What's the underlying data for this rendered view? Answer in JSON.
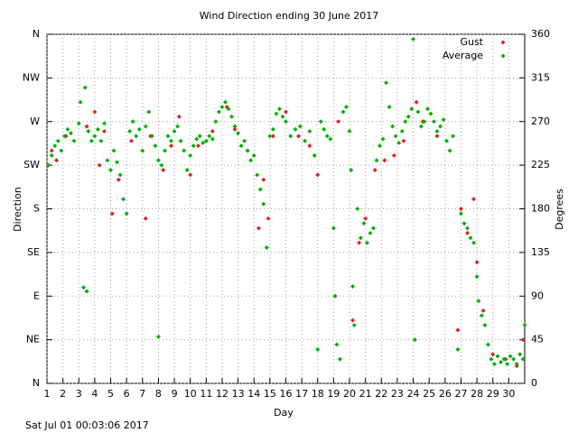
{
  "chart_data": {
    "type": "scatter",
    "title": "Wind Direction ending 30 June 2017",
    "x_label": "Day",
    "y_label": "Direction",
    "y2_label": "Degrees",
    "footer": "Sat Jul 01 00:03:06 2017",
    "xlim": [
      1,
      31
    ],
    "xticks": [
      1,
      2,
      3,
      4,
      5,
      6,
      7,
      8,
      9,
      10,
      11,
      12,
      13,
      14,
      15,
      16,
      17,
      18,
      19,
      20,
      21,
      22,
      23,
      24,
      25,
      26,
      27,
      28,
      29,
      30
    ],
    "ylim": [
      0,
      360
    ],
    "yticks": [
      {
        "value": 0,
        "label": "N"
      },
      {
        "value": 45,
        "label": "NE"
      },
      {
        "value": 90,
        "label": "E"
      },
      {
        "value": 135,
        "label": "SE"
      },
      {
        "value": 180,
        "label": "S"
      },
      {
        "value": 225,
        "label": "SW"
      },
      {
        "value": 270,
        "label": "W"
      },
      {
        "value": 315,
        "label": "NW"
      },
      {
        "value": 360,
        "label": "N"
      }
    ],
    "y2lim": [
      0,
      360
    ],
    "y2ticks": [
      0,
      45,
      90,
      135,
      180,
      225,
      270,
      315,
      360
    ],
    "grid": true,
    "legend": "top-right",
    "series": [
      {
        "name": "Gust",
        "color": "#e02020",
        "x": [
          1.3,
          1.6,
          2.2,
          3.5,
          4.0,
          4.3,
          4.6,
          5.1,
          5.5,
          6.3,
          7.2,
          7.5,
          8.3,
          8.8,
          9.3,
          10.0,
          10.5,
          11.4,
          12.3,
          12.8,
          13.6,
          14.3,
          14.6,
          14.9,
          15.2,
          16.0,
          16.8,
          17.5,
          18.0,
          19.3,
          20.2,
          20.6,
          21.0,
          21.6,
          22.2,
          22.8,
          23.4,
          24.2,
          24.6,
          25.5,
          26.8,
          27.0,
          27.4,
          27.8,
          28.0,
          28.4,
          29.0,
          29.8,
          30.5,
          30.9
        ],
        "values": [
          240,
          230,
          255,
          265,
          280,
          225,
          260,
          175,
          210,
          250,
          170,
          255,
          220,
          245,
          275,
          215,
          245,
          260,
          285,
          262,
          240,
          160,
          210,
          170,
          255,
          280,
          255,
          245,
          215,
          270,
          65,
          145,
          170,
          220,
          230,
          235,
          250,
          290,
          270,
          255,
          55,
          180,
          155,
          190,
          125,
          75,
          30,
          25,
          18,
          45
        ]
      },
      {
        "name": "Average",
        "color": "#00b000",
        "x": [
          1.1,
          1.3,
          1.5,
          1.7,
          1.9,
          2.1,
          2.3,
          2.5,
          2.7,
          3.0,
          3.1,
          3.3,
          3.5,
          3.4,
          3.6,
          3.8,
          4.0,
          4.2,
          4.4,
          4.6,
          4.8,
          5.0,
          5.2,
          5.4,
          5.6,
          5.8,
          6.0,
          6.2,
          6.4,
          6.6,
          6.8,
          7.0,
          7.2,
          7.4,
          7.6,
          7.8,
          8.0,
          8.0,
          8.2,
          8.4,
          8.6,
          8.8,
          9.0,
          9.2,
          9.4,
          9.6,
          9.8,
          10.0,
          10.2,
          10.4,
          10.6,
          10.8,
          11.0,
          11.2,
          11.4,
          11.6,
          11.8,
          12.0,
          12.2,
          12.4,
          12.6,
          12.8,
          13.0,
          13.2,
          13.4,
          13.6,
          13.8,
          14.0,
          14.2,
          14.4,
          14.6,
          14.8,
          15.0,
          15.2,
          15.4,
          15.6,
          15.8,
          16.0,
          16.3,
          16.6,
          16.9,
          17.2,
          17.5,
          17.8,
          18.0,
          18.2,
          18.4,
          18.6,
          18.8,
          19.0,
          19.1,
          19.2,
          19.4,
          19.6,
          19.8,
          20.0,
          20.1,
          20.2,
          20.3,
          20.5,
          20.7,
          20.9,
          21.1,
          21.3,
          21.5,
          21.7,
          21.9,
          22.1,
          22.3,
          22.5,
          22.7,
          22.9,
          23.1,
          23.3,
          23.5,
          23.7,
          23.9,
          24.0,
          24.1,
          24.3,
          24.5,
          24.7,
          24.9,
          25.1,
          25.3,
          25.5,
          25.7,
          25.9,
          26.1,
          26.3,
          26.5,
          26.8,
          27.0,
          27.2,
          27.4,
          27.6,
          27.8,
          28.0,
          28.1,
          28.3,
          28.5,
          28.7,
          28.9,
          29.1,
          29.3,
          29.5,
          29.7,
          29.9,
          30.1,
          30.3,
          30.5,
          30.7,
          30.9,
          31.0
        ],
        "values": [
          225,
          235,
          245,
          250,
          240,
          255,
          262,
          258,
          250,
          268,
          290,
          99,
          95,
          305,
          260,
          250,
          255,
          262,
          250,
          268,
          230,
          220,
          240,
          228,
          215,
          190,
          175,
          260,
          270,
          255,
          262,
          240,
          265,
          280,
          255,
          245,
          230,
          48,
          225,
          240,
          255,
          250,
          260,
          265,
          250,
          240,
          220,
          235,
          245,
          252,
          255,
          248,
          250,
          255,
          252,
          270,
          280,
          285,
          290,
          283,
          275,
          265,
          258,
          245,
          250,
          240,
          230,
          235,
          215,
          200,
          185,
          140,
          255,
          262,
          278,
          283,
          275,
          270,
          255,
          262,
          265,
          250,
          260,
          235,
          35,
          270,
          262,
          255,
          252,
          160,
          90,
          40,
          25,
          280,
          285,
          260,
          220,
          100,
          60,
          180,
          150,
          165,
          145,
          155,
          160,
          230,
          245,
          252,
          310,
          285,
          265,
          255,
          248,
          260,
          270,
          275,
          283,
          355,
          45,
          280,
          265,
          270,
          283,
          278,
          270,
          260,
          265,
          272,
          250,
          240,
          255,
          35,
          175,
          165,
          160,
          150,
          145,
          110,
          85,
          70,
          60,
          40,
          25,
          20,
          28,
          22,
          25,
          20,
          28,
          25,
          20,
          30,
          25,
          60
        ]
      }
    ]
  }
}
